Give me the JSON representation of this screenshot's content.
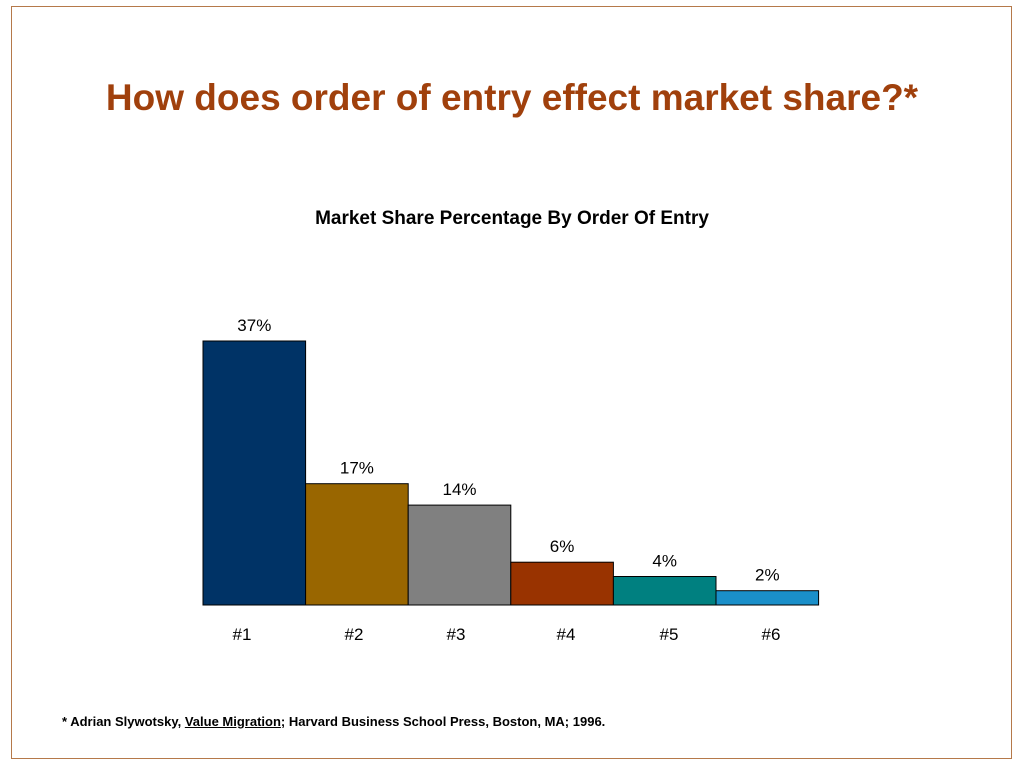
{
  "slide": {
    "title": "How does order of entry effect market share?*"
  },
  "chart_data": {
    "type": "bar",
    "title": "Market Share Percentage By Order Of Entry",
    "categories": [
      "#1",
      "#2",
      "#3",
      "#4",
      "#5",
      "#6"
    ],
    "values": [
      37,
      17,
      14,
      6,
      4,
      2
    ],
    "value_labels": [
      "37%",
      "17%",
      "14%",
      "6%",
      "4%",
      "2%"
    ],
    "colors": [
      "#003366",
      "#996600",
      "#808080",
      "#993300",
      "#008080",
      "#1a8fc9"
    ],
    "xlabel": "",
    "ylabel": "",
    "ylim": [
      0,
      37
    ],
    "grid": false,
    "legend": "none"
  },
  "footnote": {
    "prefix": "* Adrian Slywotsky, ",
    "book": "Value Migration",
    "suffix": "; Harvard Business School Press, Boston, MA; 1996."
  }
}
